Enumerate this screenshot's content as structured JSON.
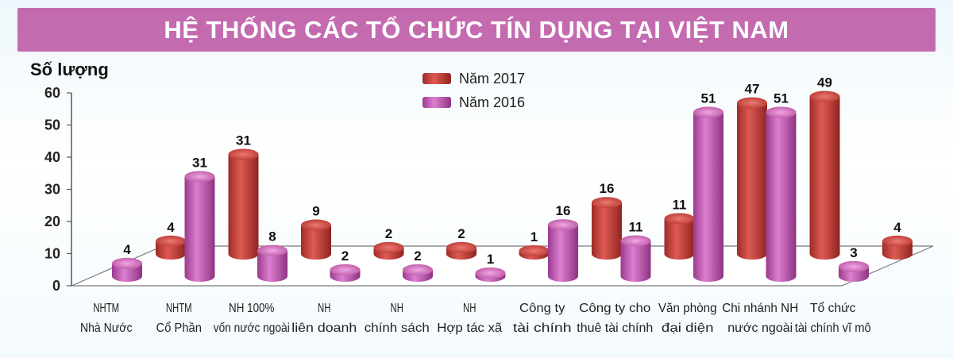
{
  "chart_data": {
    "type": "bar",
    "title": "HỆ THỐNG CÁC TỔ CHỨC TÍN DỤNG TẠI VIỆT NAM",
    "ylabel": "Số lượng",
    "xlabel": "",
    "ylim": [
      0,
      60
    ],
    "yticks": [
      0,
      10,
      20,
      30,
      40,
      50,
      60
    ],
    "categories": [
      [
        "NHTM",
        "Nhà Nước"
      ],
      [
        "NHTM",
        "Cổ Phần"
      ],
      [
        "NH 100%",
        "vốn nước ngoài"
      ],
      [
        "NH",
        "liên doanh"
      ],
      [
        "NH",
        "chính sách"
      ],
      [
        "NH",
        "Hợp tác xã"
      ],
      [
        "Công ty",
        "tài chính"
      ],
      [
        "Công ty cho",
        "thuê tài chính"
      ],
      [
        "Văn phòng",
        "đại diện"
      ],
      [
        "Chi nhánh NH",
        "nước ngoài"
      ],
      [
        "Tổ chức",
        "tài chính vĩ mô"
      ]
    ],
    "series": [
      {
        "name": "Năm 2017",
        "color": "#c9423c",
        "values": [
          4,
          31,
          9,
          2,
          2,
          1,
          16,
          11,
          47,
          49,
          4
        ]
      },
      {
        "name": "Năm 2016",
        "color": "#c257b4",
        "values": [
          4,
          31,
          8,
          2,
          2,
          1,
          16,
          11,
          51,
          51,
          3
        ]
      }
    ],
    "legend_position": "top-center",
    "grid": false
  }
}
